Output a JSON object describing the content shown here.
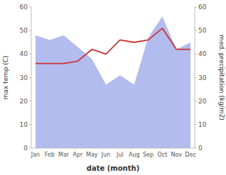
{
  "chart_data": {
    "type": "line",
    "xlabel": "date (month)",
    "ylabel": "max temp (C)",
    "y2label": "med. precipitation (kg/m2)",
    "categories": [
      "Jan",
      "Feb",
      "Mar",
      "Apr",
      "May",
      "Jun",
      "Jul",
      "Aug",
      "Sep",
      "Oct",
      "Nov",
      "Dec"
    ],
    "ylim": [
      0,
      60
    ],
    "yticks": [
      0,
      10,
      20,
      30,
      40,
      50,
      60
    ],
    "y2lim": [
      0,
      60
    ],
    "y2ticks": [
      0,
      10,
      20,
      30,
      40,
      50,
      60
    ],
    "grid": false,
    "series": [
      {
        "type": "line",
        "color": "#cc3333",
        "values": [
          36,
          36,
          36,
          37,
          42,
          40,
          46,
          45,
          46,
          51,
          42,
          42
        ]
      },
      {
        "type": "area",
        "axis": "y2",
        "color": "#b3bcee",
        "values": [
          48,
          46,
          48,
          43,
          38,
          27,
          31,
          27,
          47,
          56,
          42,
          45
        ]
      }
    ]
  }
}
